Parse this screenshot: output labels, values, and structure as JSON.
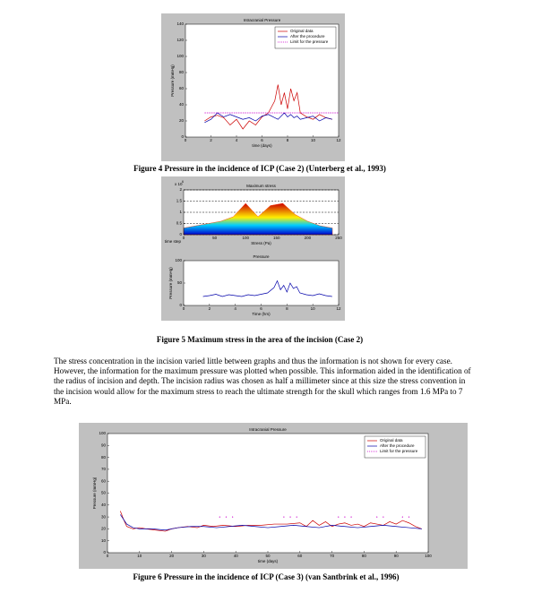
{
  "figures": [
    {
      "title": "Intracranial Pressure",
      "xlabel": "time (days)",
      "ylabel": "Pressure (mmHg)",
      "xlim": [
        0,
        12
      ],
      "ylim": [
        0,
        140
      ],
      "xticks": [
        0,
        2,
        4,
        6,
        8,
        10,
        12
      ],
      "yticks": [
        0,
        20,
        40,
        60,
        80,
        100,
        120,
        140
      ],
      "legend": "upper right",
      "series": [
        {
          "name": "Original data",
          "color": "#cc0000",
          "style": "line",
          "x": [
            1.5,
            2,
            2.5,
            3,
            3.5,
            4,
            4.5,
            5,
            5.5,
            6,
            6.5,
            7,
            7.25,
            7.5,
            7.75,
            8,
            8.25,
            8.5,
            8.75,
            9,
            9.5,
            10,
            10.5,
            11,
            11.5
          ],
          "values": [
            20,
            25,
            27,
            24,
            15,
            22,
            10,
            20,
            15,
            25,
            30,
            45,
            65,
            40,
            55,
            35,
            60,
            45,
            55,
            30,
            25,
            22,
            28,
            24,
            22
          ]
        },
        {
          "name": "After the procedure",
          "color": "#0000aa",
          "style": "line",
          "x": [
            1.5,
            2,
            2.5,
            3,
            3.5,
            4,
            4.5,
            5,
            5.5,
            6,
            6.5,
            7,
            7.25,
            7.5,
            7.75,
            8,
            8.25,
            8.5,
            8.75,
            9,
            9.5,
            10,
            10.5,
            11,
            11.5
          ],
          "values": [
            18,
            22,
            30,
            25,
            28,
            25,
            22,
            24,
            20,
            26,
            28,
            24,
            22,
            26,
            30,
            25,
            28,
            24,
            26,
            22,
            24,
            26,
            20,
            24,
            22
          ]
        },
        {
          "name": "Limit for the pressure",
          "color": "#cc00cc",
          "style": "dashed",
          "x": [
            1.5,
            12
          ],
          "values": [
            30,
            30
          ]
        }
      ],
      "caption": "Figure 4 Pressure in the incidence of ICP (Case 2) (Unterberg et al., 1993)"
    },
    {
      "panels": [
        {
          "title": "Maximum stress",
          "xlabel": "Stress (Pa)",
          "side_label": "time step",
          "scale_label": "x 10",
          "scale_exponent": "6",
          "xlim": [
            0,
            250
          ],
          "ylim": [
            0,
            2
          ],
          "xticks": [
            0,
            50,
            100,
            150,
            200,
            250
          ],
          "yticks": [
            0,
            0.5,
            1,
            1.5,
            2
          ],
          "grid": "dashed",
          "series": [
            {
              "color": "#ff3300",
              "style": "area",
              "x": [
                0,
                20,
                40,
                60,
                80,
                100,
                120,
                140,
                160,
                180,
                200,
                220,
                240
              ],
              "values": [
                0.3,
                0.4,
                0.5,
                0.6,
                0.8,
                1.4,
                0.8,
                1.3,
                1.4,
                0.9,
                0.6,
                0.4,
                0.3
              ]
            }
          ]
        },
        {
          "title": "Pressure",
          "xlabel": "Time (hrs)",
          "ylabel": "Pressure (mmHg)",
          "xlim": [
            0,
            12
          ],
          "ylim": [
            0,
            100
          ],
          "xticks": [
            0,
            2,
            4,
            6,
            8,
            10,
            12
          ],
          "yticks": [
            0,
            50,
            100
          ],
          "series": [
            {
              "color": "#0000aa",
              "style": "line",
              "x": [
                1.5,
                2,
                2.5,
                3,
                3.5,
                4,
                4.5,
                5,
                5.5,
                6,
                6.5,
                7,
                7.25,
                7.5,
                7.75,
                8,
                8.25,
                8.5,
                8.75,
                9,
                9.5,
                10,
                10.5,
                11,
                11.5
              ],
              "values": [
                20,
                22,
                25,
                20,
                24,
                22,
                20,
                24,
                22,
                25,
                28,
                40,
                55,
                35,
                45,
                30,
                50,
                38,
                42,
                28,
                24,
                22,
                26,
                22,
                20
              ]
            }
          ]
        }
      ],
      "caption": "Figure 5 Maximum stress in the area of the incision (Case 2)"
    },
    {
      "title": "Intracranial Pressure",
      "xlabel": "time (days)",
      "ylabel": "Pressure (mmHg)",
      "xlim": [
        0,
        100
      ],
      "ylim": [
        0,
        100
      ],
      "xticks": [
        0,
        10,
        20,
        30,
        40,
        50,
        60,
        70,
        80,
        90,
        100
      ],
      "yticks": [
        0,
        10,
        20,
        30,
        40,
        50,
        60,
        70,
        80,
        90,
        100
      ],
      "legend": "upper right",
      "series": [
        {
          "name": "Original data",
          "color": "#cc0000",
          "style": "line",
          "x": [
            4,
            5,
            6,
            8,
            10,
            12,
            15,
            18,
            20,
            22,
            25,
            28,
            30,
            33,
            36,
            40,
            44,
            48,
            52,
            56,
            60,
            62,
            64,
            66,
            68,
            70,
            72,
            74,
            76,
            78,
            80,
            82,
            84,
            86,
            88,
            90,
            92,
            94,
            96,
            98
          ],
          "values": [
            35,
            28,
            22,
            20,
            21,
            20,
            19,
            18,
            20,
            21,
            22,
            21,
            23,
            22,
            23,
            22,
            23,
            23,
            24,
            24,
            25,
            22,
            27,
            23,
            26,
            22,
            24,
            25,
            23,
            24,
            22,
            25,
            24,
            23,
            26,
            24,
            27,
            25,
            22,
            20
          ]
        },
        {
          "name": "After the procedure",
          "color": "#0000aa",
          "style": "line",
          "x": [
            4,
            6,
            8,
            10,
            14,
            18,
            22,
            26,
            30,
            34,
            38,
            42,
            46,
            50,
            54,
            58,
            62,
            66,
            70,
            74,
            78,
            82,
            86,
            90,
            94,
            98
          ],
          "values": [
            32,
            24,
            21,
            20,
            20,
            19,
            21,
            22,
            22,
            21,
            22,
            23,
            22,
            21,
            22,
            23,
            22,
            21,
            23,
            22,
            21,
            22,
            23,
            22,
            21,
            20
          ]
        },
        {
          "name": "Limit for the pressure",
          "color": "#cc00cc",
          "style": "dots",
          "x": [
            35,
            37,
            39,
            55,
            57,
            59,
            72,
            74,
            76,
            84,
            86,
            92,
            94
          ],
          "values": [
            30,
            30,
            30,
            30,
            30,
            30,
            30,
            30,
            30,
            30,
            30,
            30,
            30
          ]
        }
      ],
      "caption": "Figure 6 Pressure in the incidence of ICP (Case 3) (van Santbrink et al., 1996)"
    }
  ],
  "paragraph": "The stress concentration in the incision varied little between graphs and thus the information is not shown for every case. However, the information for the maximum pressure was plotted when possible. This information aided in the identification of the radius of incision and depth. The incision radius was chosen as half a millimeter since at this size the stress convention in the incision would allow for the maximum stress to reach the ultimate strength for the skull which ranges from 1.6 MPa to 7 MPa."
}
